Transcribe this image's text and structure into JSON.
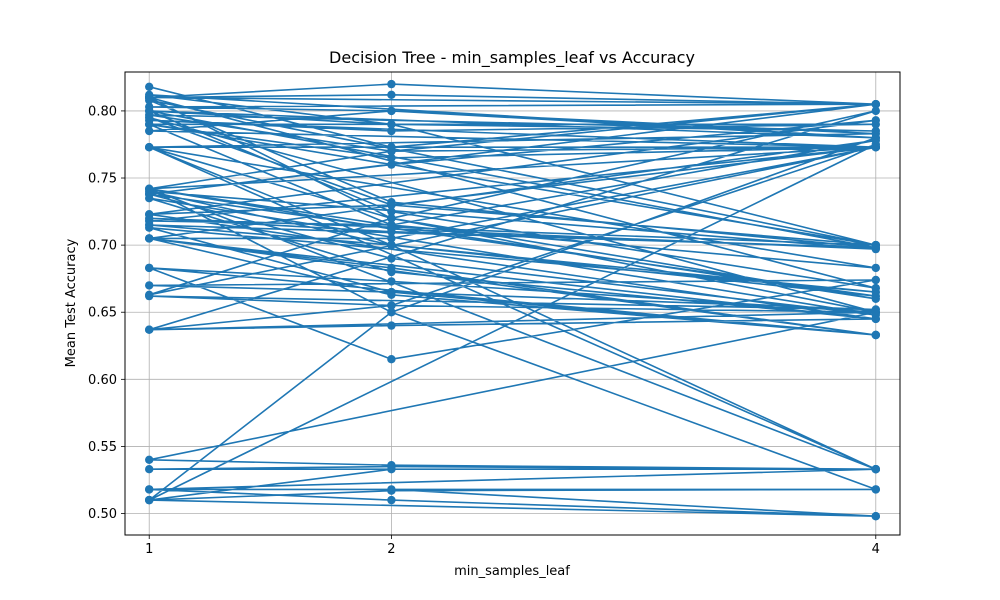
{
  "chart_data": {
    "type": "line",
    "title": "Decision Tree - min_samples_leaf vs Accuracy",
    "xlabel": "min_samples_leaf",
    "ylabel": "Mean Test Accuracy",
    "xticks": [
      1,
      2,
      4
    ],
    "yticks": [
      0.5,
      0.55,
      0.6,
      0.65,
      0.7,
      0.75,
      0.8
    ],
    "xlim": [
      0.9,
      4.1
    ],
    "ylim": [
      0.484,
      0.829
    ],
    "grid": true,
    "color": "#1f77b4",
    "x": [
      1,
      2,
      4
    ],
    "path": [
      [
        0.818,
        0.773,
        0.805
      ],
      [
        0.81,
        0.812,
        0.805
      ],
      [
        0.81,
        0.82,
        0.805
      ],
      [
        0.803,
        0.8,
        0.78
      ],
      [
        0.8,
        0.79,
        0.785
      ],
      [
        0.797,
        0.77,
        0.773
      ],
      [
        0.793,
        0.785,
        0.79
      ],
      [
        0.79,
        0.765,
        0.773
      ],
      [
        0.785,
        0.8,
        0.783
      ],
      [
        0.773,
        0.773,
        0.773
      ],
      [
        0.742,
        0.77,
        0.805
      ],
      [
        0.738,
        0.76,
        0.793
      ],
      [
        0.723,
        0.73,
        0.773
      ],
      [
        0.718,
        0.715,
        0.778
      ],
      [
        0.705,
        0.705,
        0.773
      ],
      [
        0.663,
        0.72,
        0.8
      ],
      [
        0.637,
        0.655,
        0.775
      ],
      [
        0.51,
        0.65,
        0.78
      ],
      [
        0.812,
        0.79,
        0.7
      ],
      [
        0.808,
        0.732,
        0.698
      ],
      [
        0.8,
        0.725,
        0.668
      ],
      [
        0.81,
        0.72,
        0.65
      ],
      [
        0.795,
        0.73,
        0.7
      ],
      [
        0.79,
        0.715,
        0.683
      ],
      [
        0.773,
        0.72,
        0.66
      ],
      [
        0.742,
        0.712,
        0.697
      ],
      [
        0.74,
        0.7,
        0.662
      ],
      [
        0.738,
        0.69,
        0.648
      ],
      [
        0.735,
        0.68,
        0.645
      ],
      [
        0.723,
        0.73,
        0.7
      ],
      [
        0.72,
        0.71,
        0.698
      ],
      [
        0.715,
        0.7,
        0.665
      ],
      [
        0.713,
        0.665,
        0.633
      ],
      [
        0.705,
        0.683,
        0.633
      ],
      [
        0.683,
        0.615,
        0.674
      ],
      [
        0.67,
        0.665,
        0.652
      ],
      [
        0.662,
        0.655,
        0.65
      ],
      [
        0.637,
        0.64,
        0.645
      ],
      [
        0.705,
        0.663,
        0.633
      ],
      [
        0.683,
        0.673,
        0.65
      ],
      [
        0.54,
        0.536,
        0.533
      ],
      [
        0.533,
        0.535,
        0.533
      ],
      [
        0.518,
        0.518,
        0.498
      ],
      [
        0.51,
        0.517,
        0.518
      ],
      [
        0.518,
        0.51,
        0.498
      ],
      [
        0.51,
        0.533,
        0.533
      ],
      [
        0.773,
        0.7,
        0.533
      ],
      [
        0.742,
        0.65,
        0.518
      ]
    ]
  }
}
